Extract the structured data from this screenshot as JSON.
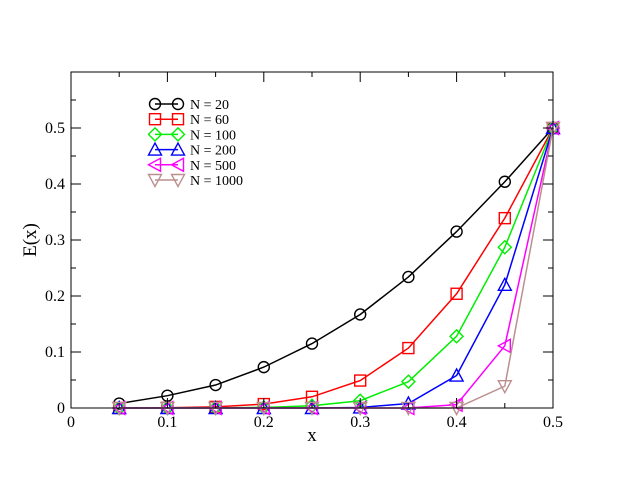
{
  "chart_data": {
    "type": "line",
    "xlabel": "x",
    "ylabel": "E(x)",
    "xlim": [
      0,
      0.5
    ],
    "ylim": [
      0,
      0.6
    ],
    "x_ticks": [
      0,
      0.1,
      0.2,
      0.3,
      0.4,
      0.5
    ],
    "x_tick_labels": [
      "0",
      "0.1",
      "0.2",
      "0.3",
      "0.4",
      "0.5"
    ],
    "y_ticks": [
      0,
      0.1,
      0.2,
      0.3,
      0.4,
      0.5
    ],
    "y_tick_labels": [
      "0",
      "0.1",
      "0.2",
      "0.3",
      "0.4",
      "0.5"
    ],
    "grid": false,
    "legend_position": "top-left",
    "x": [
      0.05,
      0.1,
      0.15,
      0.2,
      0.25,
      0.3,
      0.35,
      0.4,
      0.45,
      0.5
    ],
    "series": [
      {
        "name": "N = 20",
        "color": "#000000",
        "marker": "circle",
        "values": [
          0.008,
          0.022,
          0.041,
          0.073,
          0.115,
          0.167,
          0.234,
          0.315,
          0.404,
          0.5
        ]
      },
      {
        "name": "N = 60",
        "color": "#ff0000",
        "marker": "square",
        "values": [
          0.0,
          0.0005,
          0.002,
          0.007,
          0.02,
          0.049,
          0.107,
          0.204,
          0.339,
          0.5
        ]
      },
      {
        "name": "N = 100",
        "color": "#00ee00",
        "marker": "diamond",
        "values": [
          0.0,
          0.0,
          0.0002,
          0.001,
          0.004,
          0.013,
          0.047,
          0.128,
          0.287,
          0.5
        ]
      },
      {
        "name": "N = 200",
        "color": "#0000ff",
        "marker": "triangle-up",
        "values": [
          0.0,
          0.0,
          0.0,
          0.0,
          0.0,
          0.001,
          0.008,
          0.058,
          0.22,
          0.5
        ]
      },
      {
        "name": "N = 500",
        "color": "#ff00ff",
        "marker": "triangle-left",
        "values": [
          0.0,
          0.0,
          0.0,
          0.0,
          0.0,
          0.0,
          0.0,
          0.006,
          0.111,
          0.5
        ]
      },
      {
        "name": "N = 1000",
        "color": "#bc8f8f",
        "marker": "triangle-down",
        "values": [
          0.0,
          0.0,
          0.0,
          0.0,
          0.0,
          0.0,
          0.0,
          0.0,
          0.039,
          0.5
        ]
      }
    ]
  }
}
